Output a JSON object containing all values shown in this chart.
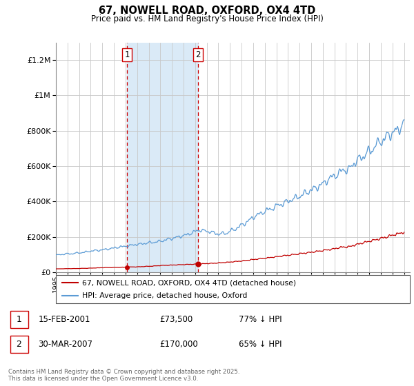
{
  "title": "67, NOWELL ROAD, OXFORD, OX4 4TD",
  "subtitle": "Price paid vs. HM Land Registry's House Price Index (HPI)",
  "ylim": [
    0,
    1300000
  ],
  "xlim_start": 1995,
  "xlim_end": 2025.5,
  "purchase1_year": 2001.12,
  "purchase1_price": 73500,
  "purchase2_year": 2007.24,
  "purchase2_price": 170000,
  "legend_line1": "67, NOWELL ROAD, OXFORD, OX4 4TD (detached house)",
  "legend_line2": "HPI: Average price, detached house, Oxford",
  "footer": "Contains HM Land Registry data © Crown copyright and database right 2025.\nThis data is licensed under the Open Government Licence v3.0.",
  "hpi_color": "#5b9bd5",
  "price_color": "#c00000",
  "shaded_color": "#daeaf7",
  "vline_color": "#cc0000",
  "grid_color": "#c8c8c8",
  "bg_color": "#ffffff"
}
